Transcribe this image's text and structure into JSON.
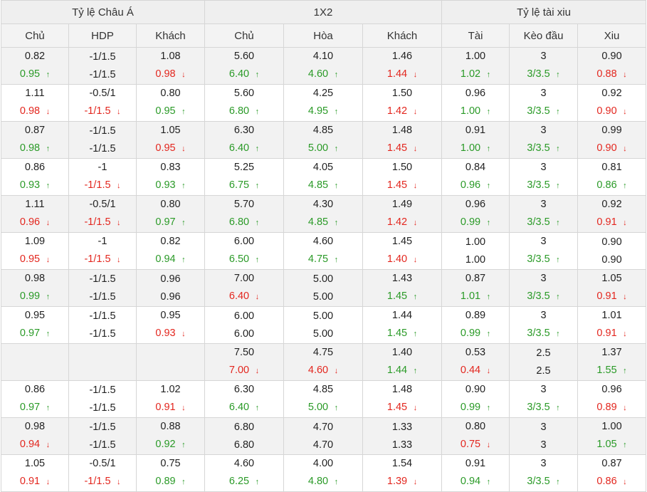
{
  "groups": [
    "Tỷ lệ Châu Á",
    "1X2",
    "Tỷ lệ tài xiu"
  ],
  "columns": [
    "Chủ",
    "HDP",
    "Khách",
    "Chủ",
    "Hòa",
    "Khách",
    "Tài",
    "Kèo đầu",
    "Xiu"
  ],
  "colors": {
    "up": "#2a9a27",
    "down": "#e3261e",
    "header_bg": "#efefef",
    "row_alt_bg": "#f2f2f2"
  },
  "arrow_icons": {
    "up": "arrow-up-icon",
    "down": "arrow-down-icon"
  },
  "rows": [
    [
      [
        "0.82",
        "0.95",
        "u"
      ],
      [
        "-1/1.5",
        "-1/1.5",
        ""
      ],
      [
        "1.08",
        "0.98",
        "d"
      ],
      [
        "5.60",
        "6.40",
        "u"
      ],
      [
        "4.10",
        "4.60",
        "u"
      ],
      [
        "1.46",
        "1.44",
        "d"
      ],
      [
        "1.00",
        "1.02",
        "u"
      ],
      [
        "3",
        "3/3.5",
        "u"
      ],
      [
        "0.90",
        "0.88",
        "d"
      ]
    ],
    [
      [
        "1.11",
        "0.98",
        "d"
      ],
      [
        "-0.5/1",
        "-1/1.5",
        "d"
      ],
      [
        "0.80",
        "0.95",
        "u"
      ],
      [
        "5.60",
        "6.80",
        "u"
      ],
      [
        "4.25",
        "4.95",
        "u"
      ],
      [
        "1.50",
        "1.42",
        "d"
      ],
      [
        "0.96",
        "1.00",
        "u"
      ],
      [
        "3",
        "3/3.5",
        "u"
      ],
      [
        "0.92",
        "0.90",
        "d"
      ]
    ],
    [
      [
        "0.87",
        "0.98",
        "u"
      ],
      [
        "-1/1.5",
        "-1/1.5",
        ""
      ],
      [
        "1.05",
        "0.95",
        "d"
      ],
      [
        "6.30",
        "6.40",
        "u"
      ],
      [
        "4.85",
        "5.00",
        "u"
      ],
      [
        "1.48",
        "1.45",
        "d"
      ],
      [
        "0.91",
        "1.00",
        "u"
      ],
      [
        "3",
        "3/3.5",
        "u"
      ],
      [
        "0.99",
        "0.90",
        "d"
      ]
    ],
    [
      [
        "0.86",
        "0.93",
        "u"
      ],
      [
        "-1",
        "-1/1.5",
        "d"
      ],
      [
        "0.83",
        "0.93",
        "u"
      ],
      [
        "5.25",
        "6.75",
        "u"
      ],
      [
        "4.05",
        "4.85",
        "u"
      ],
      [
        "1.50",
        "1.45",
        "d"
      ],
      [
        "0.84",
        "0.96",
        "u"
      ],
      [
        "3",
        "3/3.5",
        "u"
      ],
      [
        "0.81",
        "0.86",
        "u"
      ]
    ],
    [
      [
        "1.11",
        "0.96",
        "d"
      ],
      [
        "-0.5/1",
        "-1/1.5",
        "d"
      ],
      [
        "0.80",
        "0.97",
        "u"
      ],
      [
        "5.70",
        "6.80",
        "u"
      ],
      [
        "4.30",
        "4.85",
        "u"
      ],
      [
        "1.49",
        "1.42",
        "d"
      ],
      [
        "0.96",
        "0.99",
        "u"
      ],
      [
        "3",
        "3/3.5",
        "u"
      ],
      [
        "0.92",
        "0.91",
        "d"
      ]
    ],
    [
      [
        "1.09",
        "0.95",
        "d"
      ],
      [
        "-1",
        "-1/1.5",
        "d"
      ],
      [
        "0.82",
        "0.94",
        "u"
      ],
      [
        "6.00",
        "6.50",
        "u"
      ],
      [
        "4.60",
        "4.75",
        "u"
      ],
      [
        "1.45",
        "1.40",
        "d"
      ],
      [
        "1.00",
        "1.00",
        ""
      ],
      [
        "3",
        "3/3.5",
        "u"
      ],
      [
        "0.90",
        "0.90",
        ""
      ]
    ],
    [
      [
        "0.98",
        "0.99",
        "u"
      ],
      [
        "-1/1.5",
        "-1/1.5",
        ""
      ],
      [
        "0.96",
        "0.96",
        ""
      ],
      [
        "7.00",
        "6.40",
        "d"
      ],
      [
        "5.00",
        "5.00",
        ""
      ],
      [
        "1.43",
        "1.45",
        "u"
      ],
      [
        "0.87",
        "1.01",
        "u"
      ],
      [
        "3",
        "3/3.5",
        "u"
      ],
      [
        "1.05",
        "0.91",
        "d"
      ]
    ],
    [
      [
        "0.95",
        "0.97",
        "u"
      ],
      [
        "-1/1.5",
        "-1/1.5",
        ""
      ],
      [
        "0.95",
        "0.93",
        "d"
      ],
      [
        "6.00",
        "6.00",
        ""
      ],
      [
        "5.00",
        "5.00",
        ""
      ],
      [
        "1.44",
        "1.45",
        "u"
      ],
      [
        "0.89",
        "0.99",
        "u"
      ],
      [
        "3",
        "3/3.5",
        "u"
      ],
      [
        "1.01",
        "0.91",
        "d"
      ]
    ],
    [
      [
        "",
        "",
        ""
      ],
      [
        "",
        "",
        ""
      ],
      [
        "",
        "",
        ""
      ],
      [
        "7.50",
        "7.00",
        "d"
      ],
      [
        "4.75",
        "4.60",
        "d"
      ],
      [
        "1.40",
        "1.44",
        "u"
      ],
      [
        "0.53",
        "0.44",
        "d"
      ],
      [
        "2.5",
        "2.5",
        ""
      ],
      [
        "1.37",
        "1.55",
        "u"
      ]
    ],
    [
      [
        "0.86",
        "0.97",
        "u"
      ],
      [
        "-1/1.5",
        "-1/1.5",
        ""
      ],
      [
        "1.02",
        "0.91",
        "d"
      ],
      [
        "6.30",
        "6.40",
        "u"
      ],
      [
        "4.85",
        "5.00",
        "u"
      ],
      [
        "1.48",
        "1.45",
        "d"
      ],
      [
        "0.90",
        "0.99",
        "u"
      ],
      [
        "3",
        "3/3.5",
        "u"
      ],
      [
        "0.96",
        "0.89",
        "d"
      ]
    ],
    [
      [
        "0.98",
        "0.94",
        "d"
      ],
      [
        "-1/1.5",
        "-1/1.5",
        ""
      ],
      [
        "0.88",
        "0.92",
        "u"
      ],
      [
        "6.80",
        "6.80",
        ""
      ],
      [
        "4.70",
        "4.70",
        ""
      ],
      [
        "1.33",
        "1.33",
        ""
      ],
      [
        "0.80",
        "0.75",
        "d"
      ],
      [
        "3",
        "3",
        ""
      ],
      [
        "1.00",
        "1.05",
        "u"
      ]
    ],
    [
      [
        "1.05",
        "0.91",
        "d"
      ],
      [
        "-0.5/1",
        "-1/1.5",
        "d"
      ],
      [
        "0.75",
        "0.89",
        "u"
      ],
      [
        "4.60",
        "6.25",
        "u"
      ],
      [
        "4.00",
        "4.80",
        "u"
      ],
      [
        "1.54",
        "1.39",
        "d"
      ],
      [
        "0.91",
        "0.94",
        "u"
      ],
      [
        "3",
        "3/3.5",
        "u"
      ],
      [
        "0.87",
        "0.86",
        "d"
      ]
    ]
  ]
}
